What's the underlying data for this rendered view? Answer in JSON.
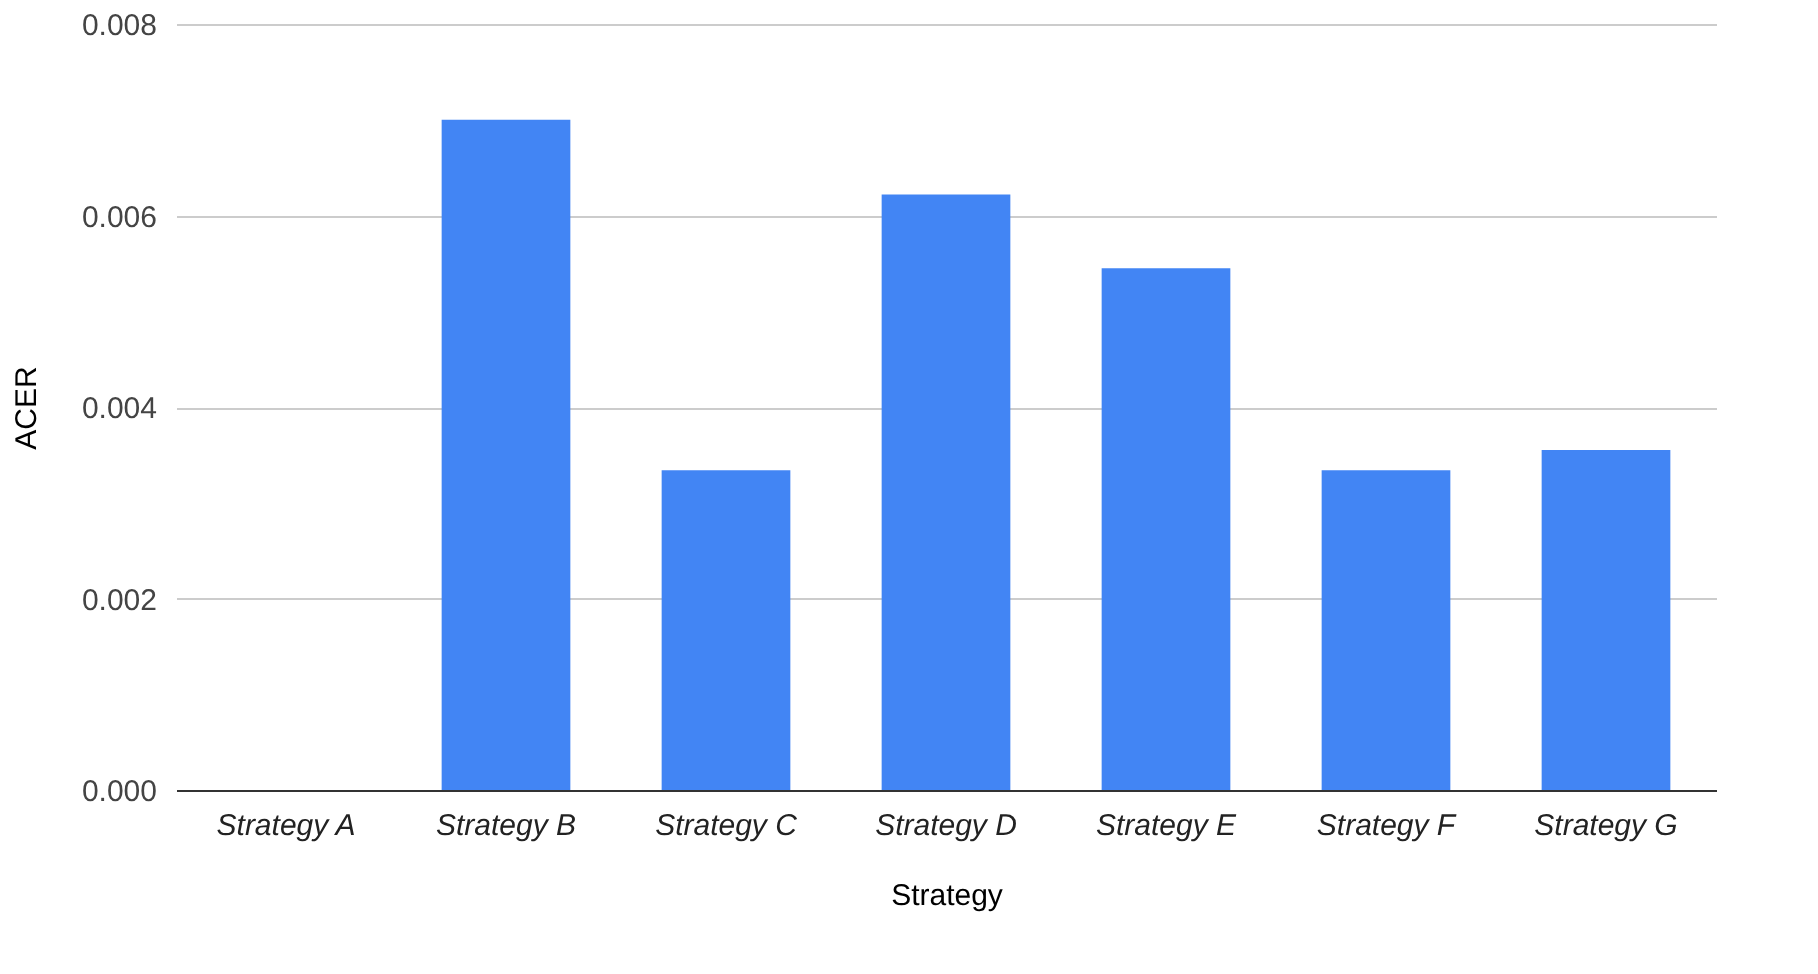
{
  "chart_data": {
    "type": "bar",
    "xlabel": "Strategy",
    "ylabel": "ACER",
    "categories": [
      "Strategy A",
      "Strategy B",
      "Strategy C",
      "Strategy D",
      "Strategy E",
      "Strategy F",
      "Strategy G"
    ],
    "series": [
      {
        "color": "#4285f4",
        "values": [
          0,
          0.007,
          0.00334,
          0.00622,
          0.00545,
          0.00334,
          0.00355
        ]
      }
    ],
    "ylim": [
      0,
      0.008
    ],
    "yticks": [
      {
        "value": 0,
        "label": "0.000"
      },
      {
        "value": 0.002,
        "label": "0.002"
      },
      {
        "value": 0.004,
        "label": "0.004"
      },
      {
        "value": 0.006,
        "label": "0.006"
      },
      {
        "value": 0.008,
        "label": "0.008"
      }
    ],
    "grid": "y",
    "legend": false
  }
}
